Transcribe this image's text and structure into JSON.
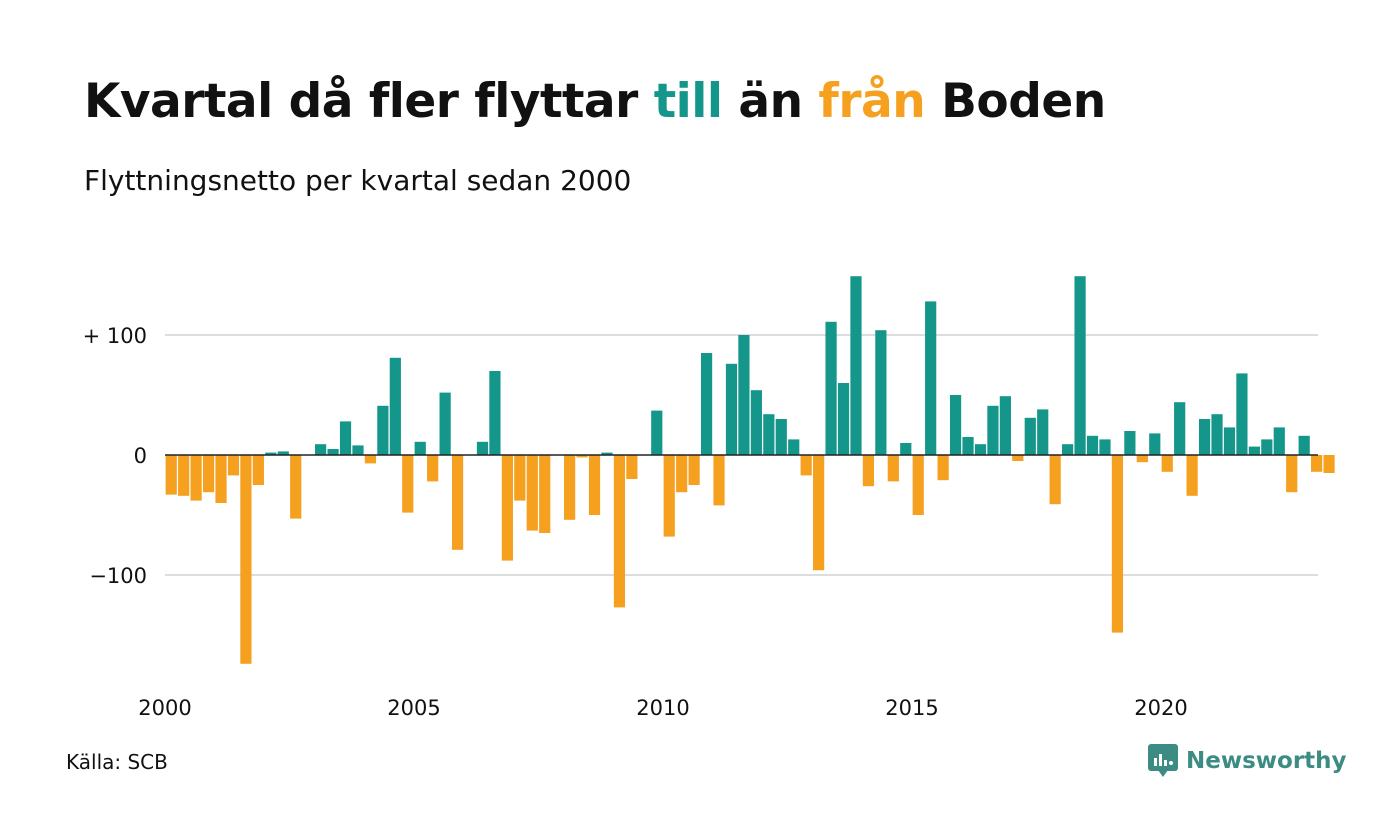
{
  "title": {
    "part1": "Kvartal då fler flyttar ",
    "word_till": "till",
    "part2": " än ",
    "word_fran": "från",
    "part3": " Boden"
  },
  "subtitle": "Flyttningsnetto per kvartal sedan 2000",
  "source": "Källa: SCB",
  "brand": {
    "name": "Newsworthy",
    "icon": "newsworthy-logo-icon"
  },
  "colors": {
    "positive": "#15968a",
    "negative": "#f5a01f",
    "grid": "#dddddd",
    "zero_line": "#222222"
  },
  "chart_data": {
    "type": "bar",
    "title": "Kvartal då fler flyttar till än från Boden",
    "subtitle": "Flyttningsnetto per kvartal sedan 2000",
    "xlabel": "",
    "ylabel": "",
    "start": "2000 Q1",
    "ylim": [
      -175,
      150
    ],
    "yticks": [
      {
        "value": 100,
        "label": "+ 100"
      },
      {
        "value": 0,
        "label": "0"
      },
      {
        "value": -100,
        "label": "−100"
      }
    ],
    "xticks": [
      "2000",
      "2005",
      "2010",
      "2015",
      "2020"
    ],
    "grid": true,
    "values": [
      -33,
      -34,
      -38,
      -31,
      -40,
      -17,
      -174,
      -25,
      2,
      3,
      -53,
      0,
      9,
      5,
      28,
      8,
      -7,
      41,
      81,
      -48,
      11,
      -22,
      52,
      -79,
      0,
      11,
      70,
      -88,
      -38,
      -63,
      -65,
      0,
      -54,
      -2,
      -50,
      2,
      -127,
      -20,
      0,
      37,
      -68,
      -31,
      -25,
      85,
      -42,
      76,
      100,
      54,
      34,
      30,
      13,
      -17,
      -96,
      111,
      60,
      149,
      -26,
      104,
      -22,
      10,
      -50,
      128,
      -21,
      50,
      15,
      9,
      41,
      49,
      -5,
      31,
      38,
      -41,
      9,
      149,
      16,
      13,
      -148,
      20,
      -6,
      18,
      -14,
      44,
      -34,
      30,
      34,
      23,
      68,
      7,
      13,
      23,
      -31,
      16,
      -14,
      -15
    ]
  }
}
